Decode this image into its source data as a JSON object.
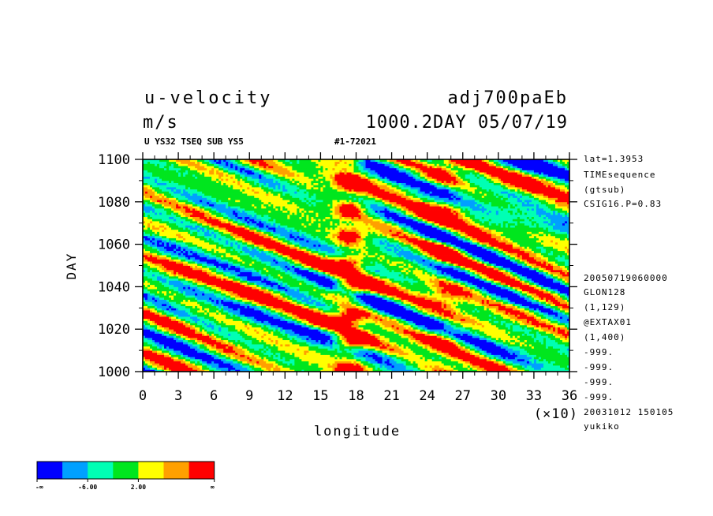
{
  "header": {
    "title_left": "u-velocity",
    "title_right": "adj700paEb",
    "units": "m/s",
    "time_label": "1000.2DAY 05/07/19",
    "subtitle_left": "U YS32 TSEQ SUB YS5",
    "subtitle_right": "#1-72021"
  },
  "right_info": [
    "lat=1.3953",
    "TIMEsequence",
    "(gtsub)",
    "CSIG16.P=0.83",
    "20050719060000",
    "GLON128",
    "(1,129)",
    "@EXTAX01",
    "(1,400)",
    "-999.",
    "-999.",
    "-999.",
    "-999.",
    "20031012 150105",
    "yukiko"
  ],
  "colorbar": {
    "colors": [
      "#0000ff",
      "#00a0ff",
      "#00ffb4",
      "#00e61e",
      "#ffff00",
      "#ffa000",
      "#ff0000"
    ],
    "labels": [
      "-∞",
      "-6.00",
      "2.00",
      "∞"
    ]
  },
  "chart_data": {
    "type": "heatmap",
    "title": "u-velocity",
    "xlabel": "longitude",
    "ylabel": "DAY",
    "x_multiplier_label": "(×10)",
    "xlim": [
      0,
      36
    ],
    "ylim": [
      1000,
      1100
    ],
    "x_ticks": [
      "0",
      "3",
      "6",
      "9",
      "12",
      "15",
      "18",
      "21",
      "24",
      "27",
      "30",
      "33",
      "36"
    ],
    "y_ticks": [
      "1000",
      "1020",
      "1040",
      "1060",
      "1080",
      "1100"
    ],
    "color_levels": [
      "-∞",
      "-6.00",
      "2.00",
      "∞"
    ],
    "features": {
      "westerly_maximum_longitude_x10": 17.5,
      "secondary_maximum_longitude_x10": 25.5,
      "background_pattern": "westward-propagating bands (downward-sloping with longitude)"
    }
  }
}
